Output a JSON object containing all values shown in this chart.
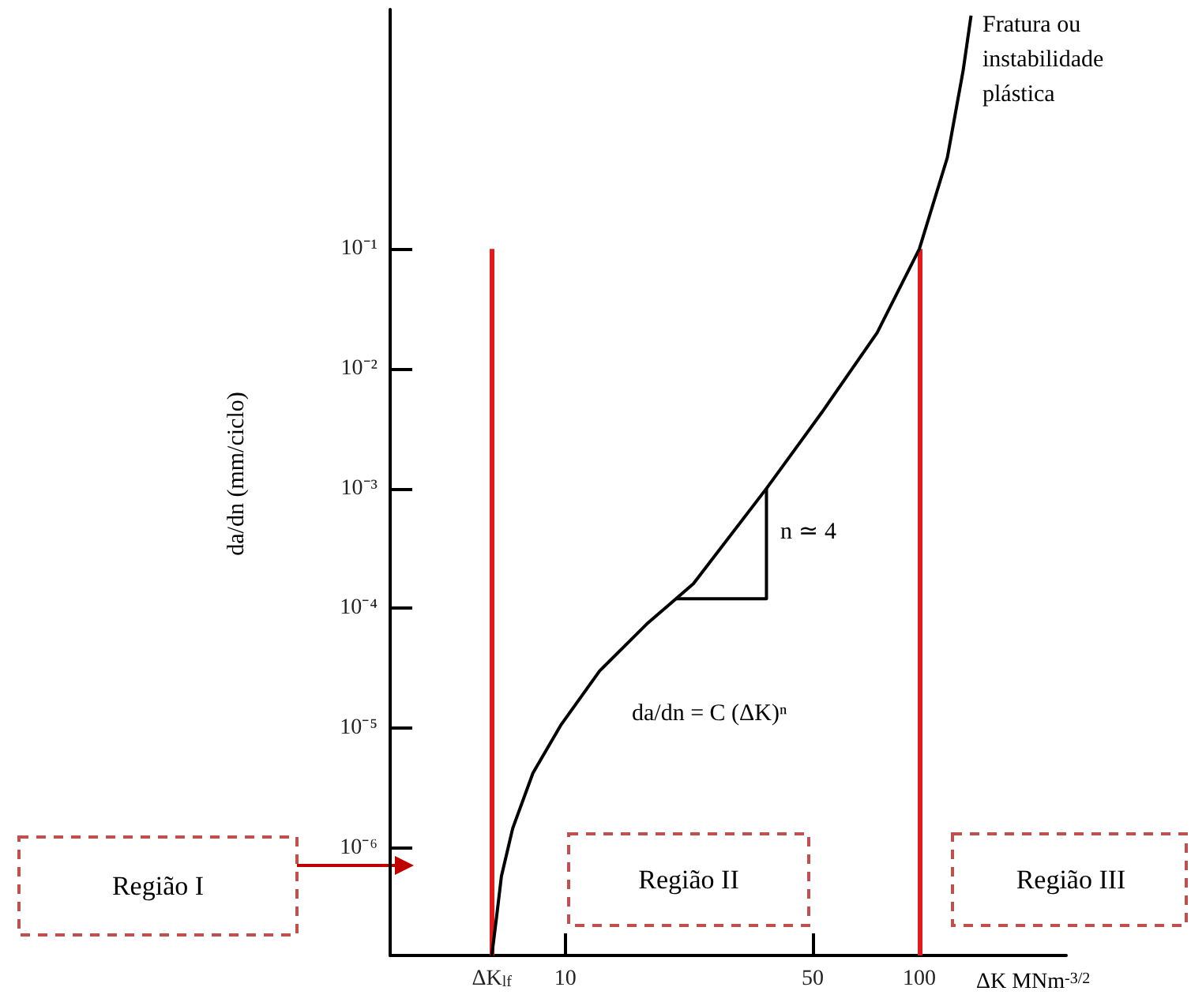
{
  "chart_data": {
    "type": "line",
    "xlabel": "ΔK MNm$^{-3/2}$",
    "ylabel": "da/dn (mm/ciclo)",
    "log": "xy",
    "grid": false,
    "marker": "none",
    "line_style": "solid",
    "xlim": [
      3.2,
      260
    ],
    "xticks": [
      {
        "value": 6.2,
        "label": "ΔK$_{lf}$"
      },
      10,
      50,
      100
    ],
    "ylim": [
      1.26e-07,
      10
    ],
    "yticks": [
      {
        "value": 0.1,
        "label": "10⁻¹"
      },
      {
        "value": 0.01,
        "label": "10⁻²"
      },
      {
        "value": 0.001,
        "label": "10⁻³"
      },
      {
        "value": 0.0001,
        "label": "10⁻⁴"
      },
      {
        "value": 1e-05,
        "label": "10⁻⁵"
      },
      {
        "value": 1e-06,
        "label": "10⁻⁶"
      }
    ],
    "series": [
      {
        "color": "#000000",
        "x": [
          6.2,
          6.4,
          6.6,
          7.1,
          8.1,
          9.7,
          12.5,
          17,
          23,
          37,
          53,
          76,
          100,
          120,
          133,
          140
        ],
        "values": [
          1.26e-07,
          2.7e-07,
          5.8e-07,
          1.45e-06,
          4.2e-06,
          1.05e-05,
          3e-05,
          7.4e-05,
          0.00016,
          0.001,
          0.0043,
          0.02,
          0.1,
          0.58,
          3.1,
          8.9
        ]
      },
      {
        "color": "#000000",
        "x": [
          20.5,
          37,
          37
        ],
        "values": [
          0.00012,
          0.00012,
          0.001
        ]
      }
    ],
    "ref_lines": [
      {
        "axis": "x",
        "value": 6.2,
        "color": "#e31a1c"
      },
      {
        "axis": "x",
        "value": 100,
        "color": "#e31a1c"
      }
    ],
    "annotations": [
      "Fratura ou\ninstabilidade\nplástica",
      "n ≃ 4",
      "da/dn = C (ΔK)ⁿ",
      "Região I",
      "Região II",
      "Região III"
    ]
  }
}
